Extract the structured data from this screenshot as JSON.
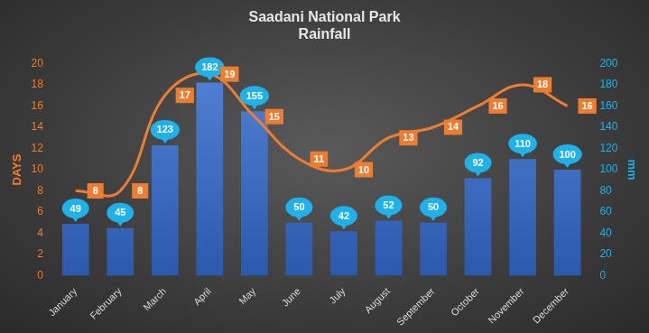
{
  "chart_data": {
    "type": "bar",
    "title": [
      "Saadani National Park",
      "Rainfall"
    ],
    "ylabel": "DAYS",
    "y2label": "mm",
    "categories": [
      "January",
      "February",
      "March",
      "April",
      "May",
      "June",
      "July",
      "August",
      "September",
      "October",
      "November",
      "December"
    ],
    "series": [
      {
        "type": "bar",
        "axis": "y2",
        "color": "#4472c4",
        "values": [
          49,
          45,
          123,
          182,
          155,
          50,
          42,
          52,
          50,
          92,
          110,
          100
        ]
      },
      {
        "type": "line",
        "axis": "y",
        "color": "#ed7d31",
        "line_style": "solid",
        "marker": "none",
        "values": [
          8,
          8,
          17,
          19,
          15,
          11,
          10,
          13,
          14,
          16,
          18,
          16
        ]
      }
    ],
    "ylim": [
      0,
      20
    ],
    "yticks": [
      0,
      2,
      4,
      6,
      8,
      10,
      12,
      14,
      16,
      18,
      20
    ],
    "y2lim": [
      0,
      200
    ],
    "y2ticks": [
      0,
      20,
      40,
      60,
      80,
      100,
      120,
      140,
      160,
      180,
      200
    ],
    "grid": false,
    "data_labels": true
  }
}
